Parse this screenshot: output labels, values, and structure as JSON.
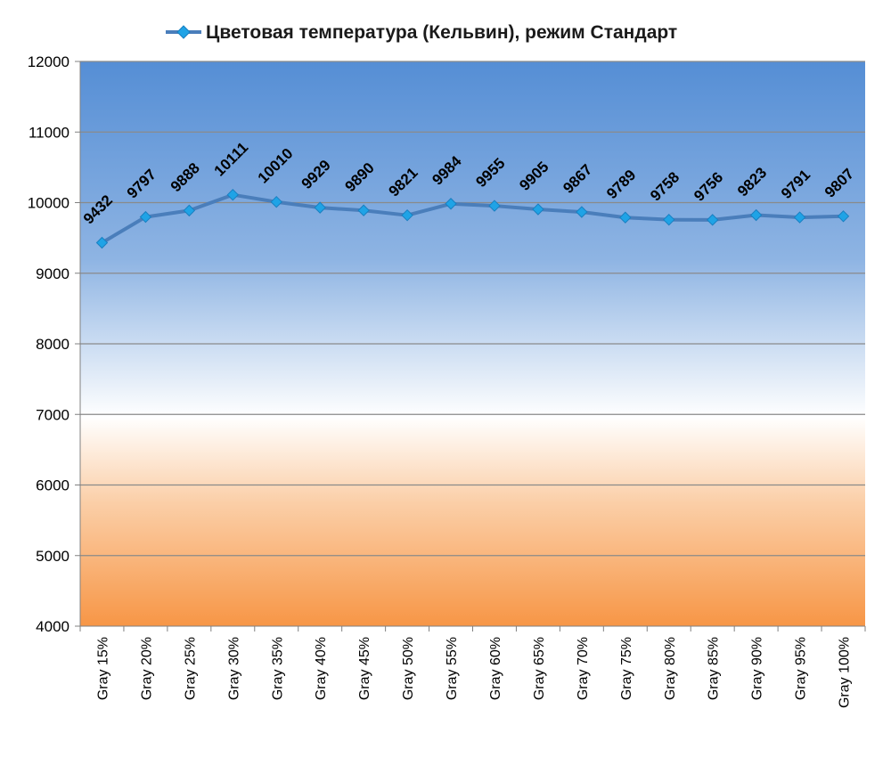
{
  "chart_data": {
    "type": "line",
    "title": "",
    "xlabel": "",
    "ylabel": "",
    "ylim": [
      4000,
      12000
    ],
    "yticks": [
      4000,
      5000,
      6000,
      7000,
      8000,
      9000,
      10000,
      11000,
      12000
    ],
    "grid": true,
    "legend_position": "top",
    "categories": [
      "Gray 15%",
      "Gray 20%",
      "Gray 25%",
      "Gray 30%",
      "Gray 35%",
      "Gray 40%",
      "Gray 45%",
      "Gray 50%",
      "Gray 55%",
      "Gray 60%",
      "Gray 65%",
      "Gray 70%",
      "Gray 75%",
      "Gray 80%",
      "Gray 85%",
      "Gray 90%",
      "Gray 95%",
      "Gray 100%"
    ],
    "series": [
      {
        "name": "Цветовая температура (Кельвин), режим Стандарт",
        "values": [
          9432,
          9797,
          9888,
          10111,
          10010,
          9929,
          9890,
          9821,
          9984,
          9955,
          9905,
          9867,
          9789,
          9758,
          9756,
          9823,
          9791,
          9807
        ],
        "color": "#4a7ebb",
        "marker_color": "#1fa3e6"
      }
    ],
    "background_gradient": [
      "#558ed5",
      "#8eb4e3",
      "#ffffff",
      "#fbcfa8",
      "#f79646"
    ]
  }
}
